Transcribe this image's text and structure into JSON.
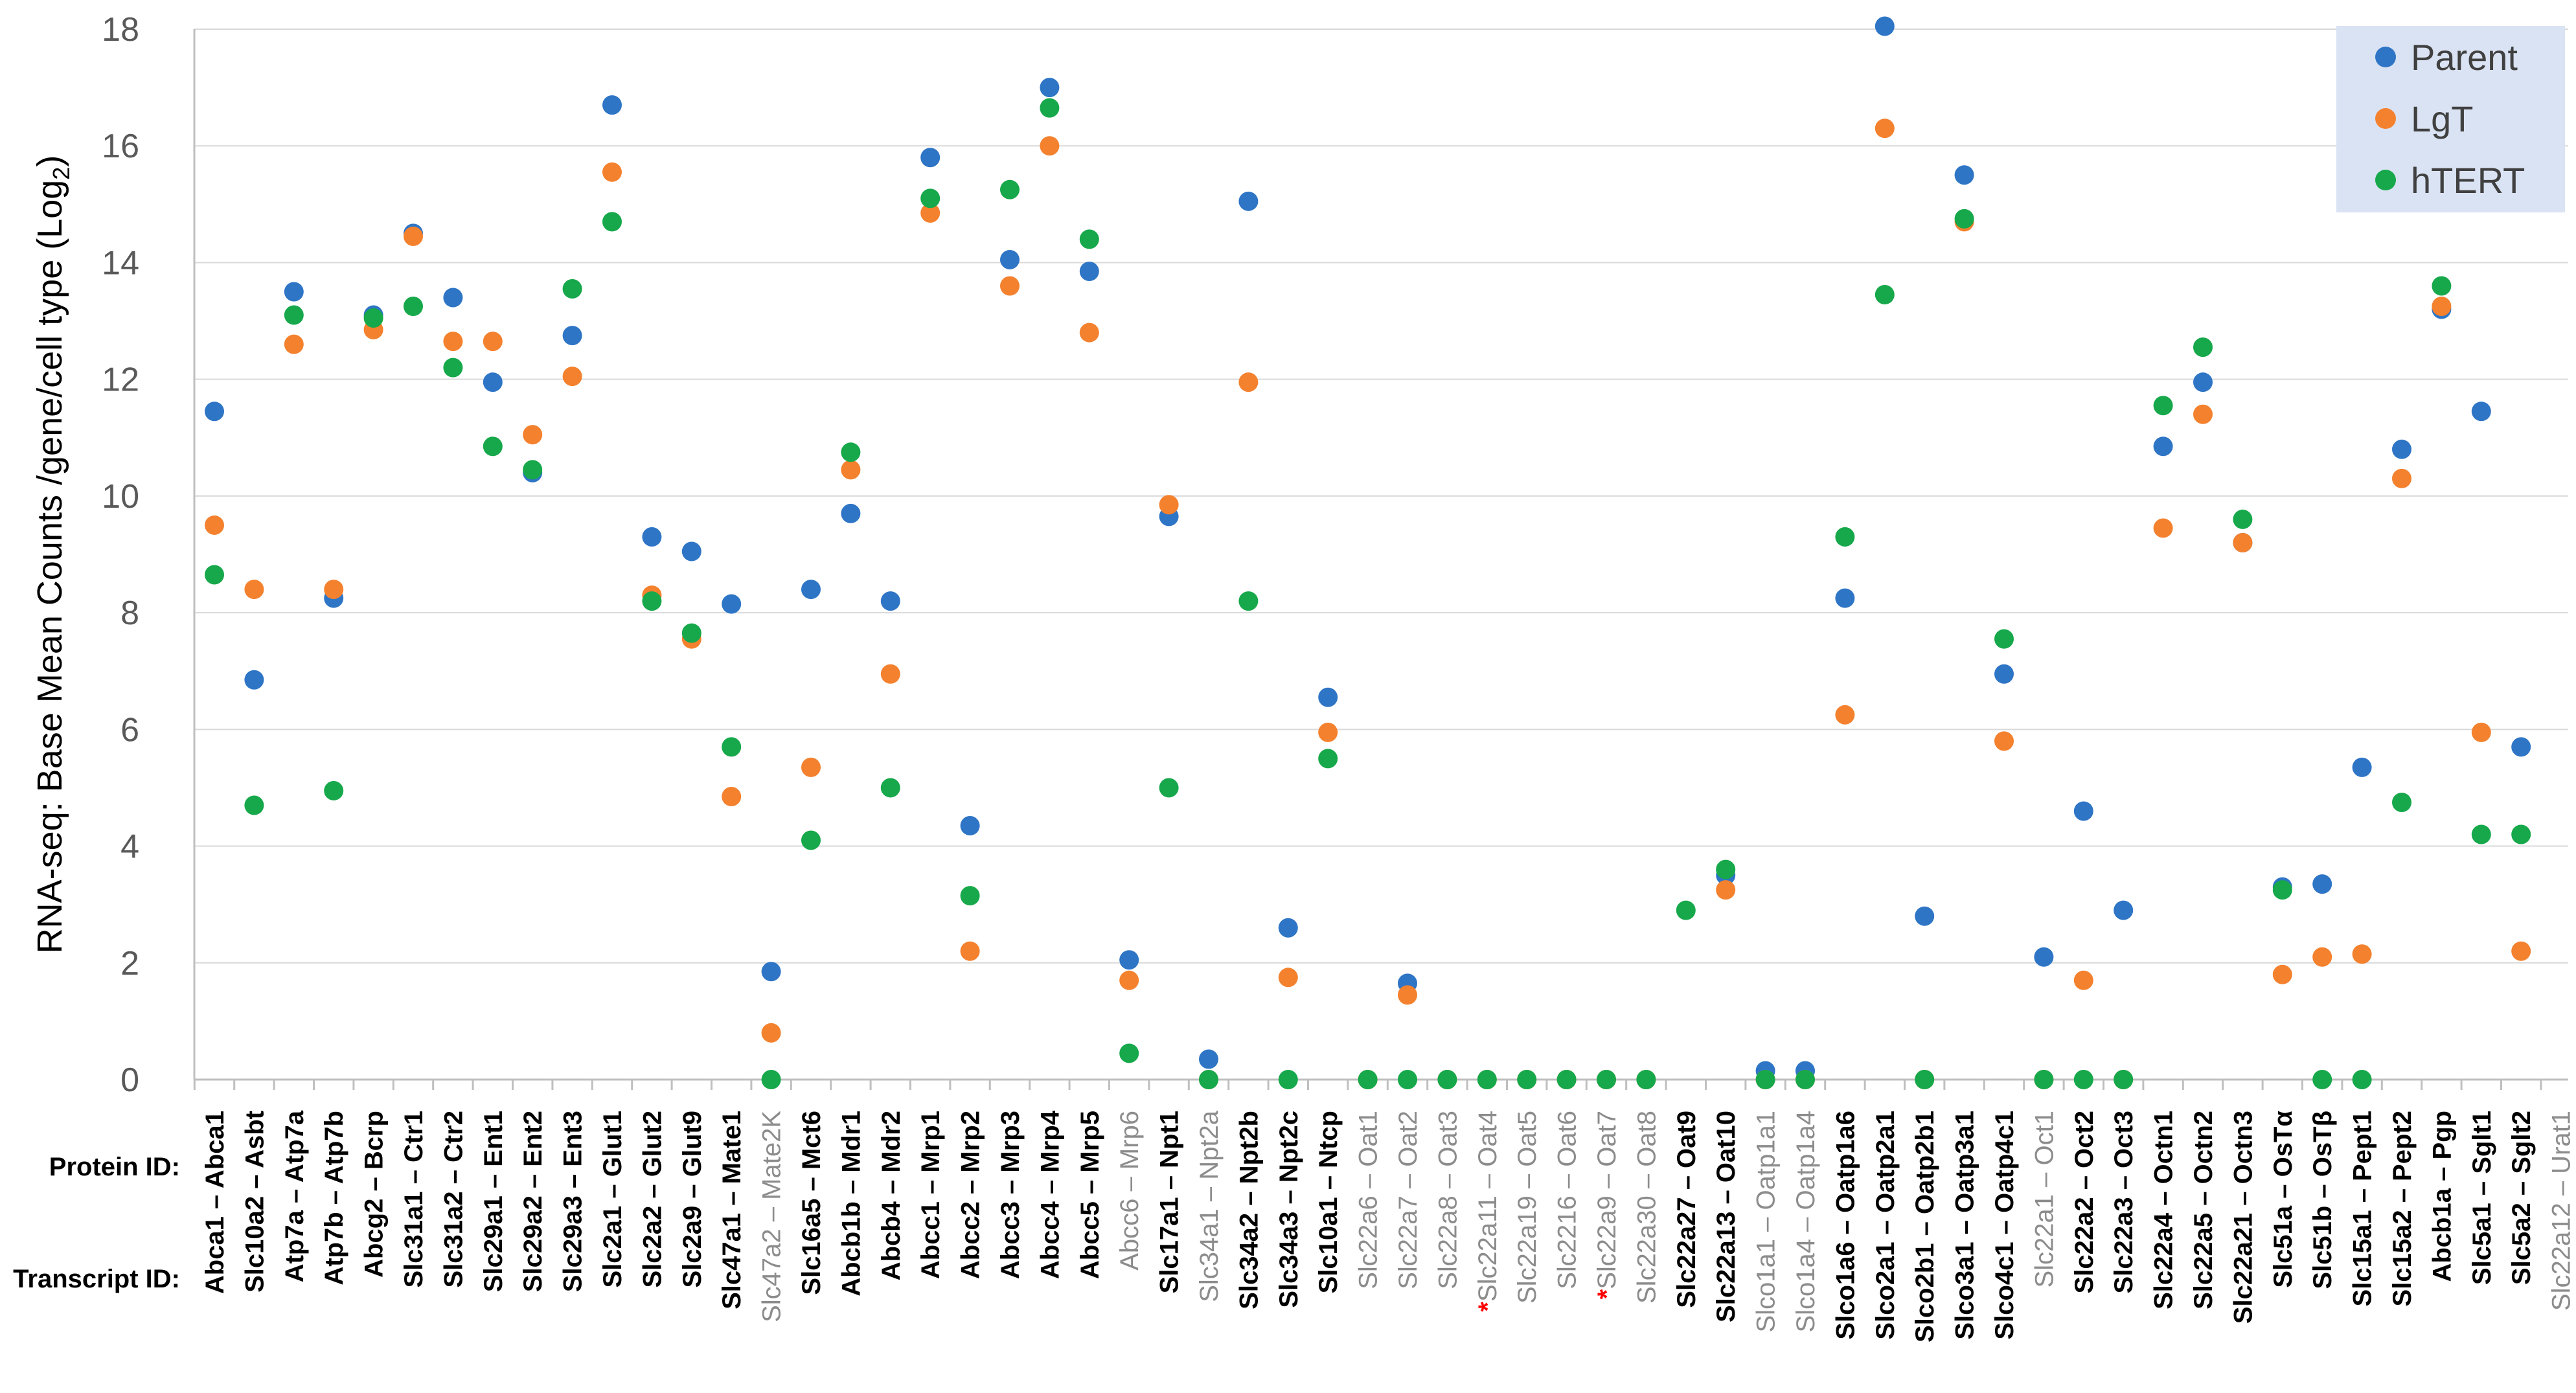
{
  "chart_data": {
    "type": "scatter",
    "title": "",
    "ylabel": "RNA-seq: Base Mean Counts /gene/cell type (Log2)",
    "ylabel_main": "RNA-seq: Base Mean Counts /gene/cell type (Log",
    "ylabel_sub": "2",
    "ylabel_tail": ")",
    "ylim": [
      0,
      18
    ],
    "yticks": [
      0,
      2,
      4,
      6,
      8,
      10,
      12,
      14,
      16,
      18
    ],
    "row_labels": {
      "protein": "Protein ID:",
      "transcript": "Transcript ID:"
    },
    "legend_position": "top-right",
    "series": [
      {
        "name": "Parent",
        "color": "#2e75c6",
        "values": [
          11.45,
          6.85,
          13.5,
          8.25,
          13.1,
          14.5,
          13.4,
          11.95,
          10.4,
          12.75,
          16.7,
          9.3,
          9.05,
          8.15,
          1.85,
          8.4,
          9.7,
          8.2,
          15.8,
          4.35,
          14.05,
          17.0,
          13.85,
          2.05,
          9.65,
          0.35,
          15.05,
          2.6,
          6.55,
          0.0,
          1.65,
          0.0,
          0.0,
          0.0,
          0.0,
          0.0,
          0.0,
          0.0,
          3.5,
          0.15,
          0.15,
          8.25,
          18.05,
          2.8,
          15.5,
          6.95,
          2.1,
          4.6,
          2.9,
          10.85,
          11.95,
          9.2,
          3.3,
          3.35,
          5.35,
          10.8,
          13.2,
          11.45,
          5.7,
          0.0
        ]
      },
      {
        "name": "LgT",
        "color": "#f4812e",
        "values": [
          9.5,
          8.4,
          12.6,
          8.4,
          12.85,
          14.45,
          12.65,
          12.65,
          11.05,
          12.05,
          15.55,
          8.3,
          7.55,
          4.85,
          0.8,
          5.35,
          10.45,
          6.95,
          14.85,
          2.2,
          13.6,
          16.0,
          12.8,
          1.7,
          9.85,
          0.0,
          11.95,
          1.75,
          5.95,
          0.0,
          1.45,
          0.0,
          0.0,
          0.0,
          0.0,
          0.0,
          0.0,
          0.0,
          3.25,
          0.0,
          0.0,
          6.25,
          16.3,
          0.0,
          14.7,
          5.8,
          0.0,
          1.7,
          0.0,
          9.45,
          11.4,
          9.2,
          1.8,
          2.1,
          2.15,
          10.3,
          13.25,
          5.95,
          2.2,
          0.0
        ]
      },
      {
        "name": "hTERT",
        "color": "#16a84a",
        "values": [
          8.65,
          4.7,
          13.1,
          4.95,
          13.05,
          13.25,
          12.2,
          10.85,
          10.45,
          13.55,
          14.7,
          8.2,
          7.65,
          5.7,
          0.0,
          4.1,
          10.75,
          5.0,
          15.1,
          3.15,
          15.25,
          16.65,
          14.4,
          0.45,
          5.0,
          0.0,
          8.2,
          0.0,
          5.5,
          0.0,
          0.0,
          0.0,
          0.0,
          0.0,
          0.0,
          0.0,
          0.0,
          2.9,
          3.6,
          0.0,
          0.0,
          9.3,
          13.45,
          0.0,
          14.75,
          7.55,
          0.0,
          0.0,
          0.0,
          11.55,
          12.55,
          9.6,
          3.25,
          0.0,
          0.0,
          4.75,
          13.6,
          4.2,
          4.2,
          0.0
        ]
      }
    ],
    "missing": {
      "Parent": [
        29,
        31,
        32,
        33,
        34,
        35,
        36,
        37,
        59
      ],
      "LgT": [
        37,
        59
      ],
      "hTERT": [
        59
      ]
    },
    "categories": [
      {
        "protein": "Abca1",
        "transcript": "Abca1",
        "style": "bold",
        "star": false
      },
      {
        "protein": "Asbt",
        "transcript": "Slc10a2",
        "style": "bold",
        "star": false
      },
      {
        "protein": "Atp7a",
        "transcript": "Atp7a",
        "style": "bold",
        "star": false
      },
      {
        "protein": "Atp7b",
        "transcript": "Atp7b",
        "style": "bold",
        "star": false
      },
      {
        "protein": "Bcrp",
        "transcript": "Abcg2",
        "style": "bold",
        "star": false
      },
      {
        "protein": "Ctr1",
        "transcript": "Slc31a1",
        "style": "bold",
        "star": false
      },
      {
        "protein": "Ctr2",
        "transcript": "Slc31a2",
        "style": "bold",
        "star": false
      },
      {
        "protein": "Ent1",
        "transcript": "Slc29a1",
        "style": "bold",
        "star": false
      },
      {
        "protein": "Ent2",
        "transcript": "Slc29a2",
        "style": "bold",
        "star": false
      },
      {
        "protein": "Ent3",
        "transcript": "Slc29a3",
        "style": "bold",
        "star": false
      },
      {
        "protein": "Glut1",
        "transcript": "Slc2a1",
        "style": "bold",
        "star": false
      },
      {
        "protein": "Glut2",
        "transcript": "Slc2a2",
        "style": "bold",
        "star": false
      },
      {
        "protein": "Glut9",
        "transcript": "Slc2a9",
        "style": "bold",
        "star": false
      },
      {
        "protein": "Mate1",
        "transcript": "Slc47a1",
        "style": "bold",
        "star": false
      },
      {
        "protein": "Mate2K",
        "transcript": "Slc47a2",
        "style": "gray",
        "star": false
      },
      {
        "protein": "Mct6",
        "transcript": "Slc16a5",
        "style": "bold",
        "star": false
      },
      {
        "protein": "Mdr1",
        "transcript": "Abcb1b",
        "style": "bold",
        "star": false
      },
      {
        "protein": "Mdr2",
        "transcript": "Abcb4",
        "style": "bold",
        "star": false
      },
      {
        "protein": "Mrp1",
        "transcript": "Abcc1",
        "style": "bold",
        "star": false
      },
      {
        "protein": "Mrp2",
        "transcript": "Abcc2",
        "style": "bold",
        "star": false
      },
      {
        "protein": "Mrp3",
        "transcript": "Abcc3",
        "style": "bold",
        "star": false
      },
      {
        "protein": "Mrp4",
        "transcript": "Abcc4",
        "style": "bold",
        "star": false
      },
      {
        "protein": "Mrp5",
        "transcript": "Abcc5",
        "style": "bold",
        "star": false
      },
      {
        "protein": "Mrp6",
        "transcript": "Abcc6",
        "style": "gray",
        "star": false
      },
      {
        "protein": "Npt1",
        "transcript": "Slc17a1",
        "style": "bold",
        "star": false
      },
      {
        "protein": "Npt2a",
        "transcript": "Slc34a1",
        "style": "gray",
        "star": false
      },
      {
        "protein": "Npt2b",
        "transcript": "Slc34a2",
        "style": "bold",
        "star": false
      },
      {
        "protein": "Npt2c",
        "transcript": "Slc34a3",
        "style": "bold",
        "star": false
      },
      {
        "protein": "Ntcp",
        "transcript": "Slc10a1",
        "style": "bold",
        "star": false
      },
      {
        "protein": "Oat1",
        "transcript": "Slc22a6",
        "style": "gray",
        "star": false
      },
      {
        "protein": "Oat2",
        "transcript": "Slc22a7",
        "style": "gray",
        "star": false
      },
      {
        "protein": "Oat3",
        "transcript": "Slc22a8",
        "style": "gray",
        "star": false
      },
      {
        "protein": "Oat4",
        "transcript": "Slc22a11",
        "style": "gray",
        "star": true
      },
      {
        "protein": "Oat5",
        "transcript": "Slc22a19",
        "style": "gray",
        "star": false
      },
      {
        "protein": "Oat6",
        "transcript": "Slc2216",
        "style": "gray",
        "star": false
      },
      {
        "protein": "Oat7",
        "transcript": "Slc22a9",
        "style": "gray",
        "star": true
      },
      {
        "protein": "Oat8",
        "transcript": "Slc22a30",
        "style": "gray",
        "star": false
      },
      {
        "protein": "Oat9",
        "transcript": "Slc22a27",
        "style": "bold",
        "star": false
      },
      {
        "protein": "Oat10",
        "transcript": "Slc22a13",
        "style": "bold",
        "star": false
      },
      {
        "protein": "Oatp1a1",
        "transcript": "Slco1a1",
        "style": "gray",
        "star": false
      },
      {
        "protein": "Oatp1a4",
        "transcript": "Slco1a4",
        "style": "gray",
        "star": false
      },
      {
        "protein": "Oatp1a6",
        "transcript": "Slco1a6",
        "style": "bold",
        "star": false
      },
      {
        "protein": "Oatp2a1",
        "transcript": "Slco2a1",
        "style": "bold",
        "star": false
      },
      {
        "protein": "Oatp2b1",
        "transcript": "Slco2b1",
        "style": "bold",
        "star": false
      },
      {
        "protein": "Oatp3a1",
        "transcript": "Slco3a1",
        "style": "bold",
        "star": false
      },
      {
        "protein": "Oatp4c1",
        "transcript": "Slco4c1",
        "style": "bold",
        "star": false
      },
      {
        "protein": "Oct1",
        "transcript": "Slc22a1",
        "style": "gray",
        "star": false
      },
      {
        "protein": "Oct2",
        "transcript": "Slc22a2",
        "style": "bold",
        "star": false
      },
      {
        "protein": "Oct3",
        "transcript": "Slc22a3",
        "style": "bold",
        "star": false
      },
      {
        "protein": "Octn1",
        "transcript": "Slc22a4",
        "style": "bold",
        "star": false
      },
      {
        "protein": "Octn2",
        "transcript": "Slc22a5",
        "style": "bold",
        "star": false
      },
      {
        "protein": "Octn3",
        "transcript": "Slc22a21",
        "style": "bold",
        "star": false
      },
      {
        "protein": "OsTα",
        "transcript": "Slc51a",
        "style": "bold",
        "star": false
      },
      {
        "protein": "OsTβ",
        "transcript": "Slc51b",
        "style": "bold",
        "star": false
      },
      {
        "protein": "Pept1",
        "transcript": "Slc15a1",
        "style": "bold",
        "star": false
      },
      {
        "protein": "Pept2",
        "transcript": "Slc15a2",
        "style": "bold",
        "star": false
      },
      {
        "protein": "Pgp",
        "transcript": "Abcb1a",
        "style": "bold",
        "star": false
      },
      {
        "protein": "Sglt1",
        "transcript": "Slc5a1",
        "style": "bold",
        "star": false
      },
      {
        "protein": "Sglt2",
        "transcript": "Slc5a2",
        "style": "bold",
        "star": false
      },
      {
        "protein": "Urat1",
        "transcript": "Slc22a12",
        "style": "gray",
        "star": false
      }
    ],
    "separator": " – ",
    "asterisk": "*"
  }
}
